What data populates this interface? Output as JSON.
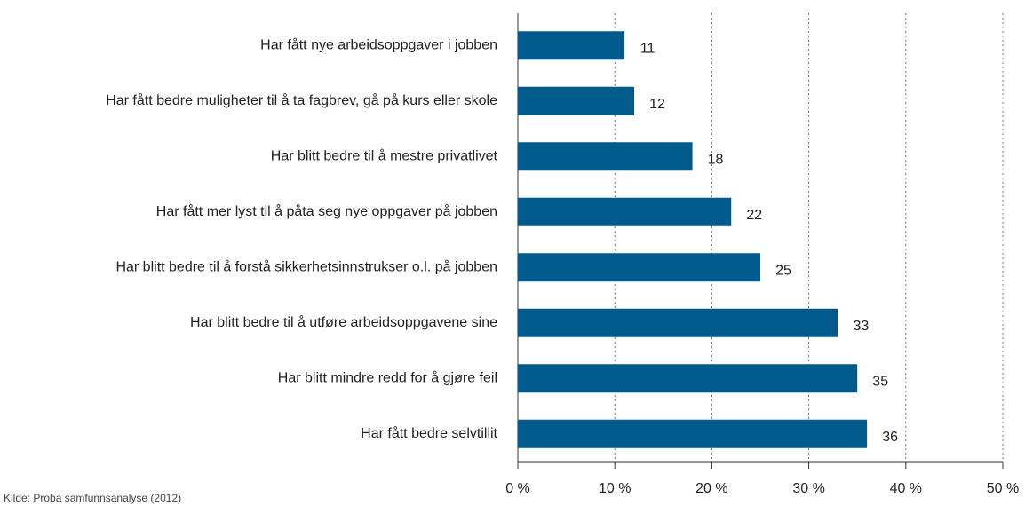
{
  "chart_data": {
    "type": "bar",
    "orientation": "horizontal",
    "categories": [
      "Har fått nye arbeidsoppgaver i jobben",
      "Har fått bedre muligheter til å ta fagbrev, gå på kurs eller skole",
      "Har blitt bedre til å mestre privatlivet",
      "Har fått mer lyst til å påta seg nye oppgaver på jobben",
      "Har blitt bedre til å forstå sikkerhetsinnstrukser o.l. på jobben",
      "Har blitt bedre til å utføre arbeidsoppgavene sine",
      "Har blitt mindre redd for å gjøre feil",
      "Har fått bedre selvtillit"
    ],
    "values": [
      11,
      12,
      18,
      22,
      25,
      33,
      35,
      36
    ],
    "color": "#005a8c",
    "xlim": [
      0,
      50
    ],
    "xticks": [
      {
        "value": 0,
        "label": "0 %"
      },
      {
        "value": 10,
        "label": "10 %"
      },
      {
        "value": 20,
        "label": "20 %"
      },
      {
        "value": 30,
        "label": "30 %"
      },
      {
        "value": 40,
        "label": "40 %"
      },
      {
        "value": 50,
        "label": "50 %"
      }
    ],
    "grid": true,
    "source": "Kilde: Proba samfunnsanalyse (2012)"
  }
}
